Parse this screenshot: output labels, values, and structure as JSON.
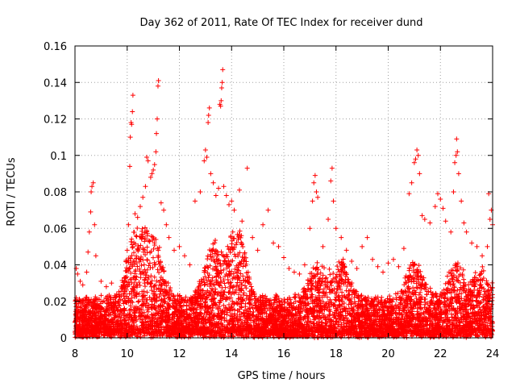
{
  "chart_data": {
    "type": "scatter",
    "title": "Day 362 of 2011, Rate Of TEC Index for receiver dund",
    "xlabel": "GPS time / hours",
    "ylabel": "ROTI / TECUs",
    "xlim": [
      8,
      24
    ],
    "ylim": [
      0,
      0.16
    ],
    "x_ticks": [
      8,
      10,
      12,
      14,
      16,
      18,
      20,
      22,
      24
    ],
    "x_tick_labels": [
      "8",
      "10",
      "12",
      "14",
      "16",
      "18",
      "20",
      "22",
      "24"
    ],
    "y_ticks": [
      0,
      0.02,
      0.04,
      0.06,
      0.08,
      0.1,
      0.12,
      0.14,
      0.16
    ],
    "y_tick_labels": [
      "0",
      "0.02",
      "0.04",
      "0.06",
      "0.08",
      "0.1",
      "0.12",
      "0.14",
      "0.16"
    ],
    "grid": true,
    "marker": "+",
    "series_color": "#ff0000",
    "series": [
      {
        "name": "ROTI",
        "points": [
          [
            8.05,
            0.038
          ],
          [
            8.1,
            0.035
          ],
          [
            8.2,
            0.031
          ],
          [
            8.3,
            0.029
          ],
          [
            8.45,
            0.036
          ],
          [
            8.5,
            0.047
          ],
          [
            8.55,
            0.058
          ],
          [
            8.6,
            0.069
          ],
          [
            8.62,
            0.08
          ],
          [
            8.65,
            0.083
          ],
          [
            8.7,
            0.085
          ],
          [
            8.75,
            0.062
          ],
          [
            8.8,
            0.045
          ],
          [
            9.0,
            0.031
          ],
          [
            9.2,
            0.028
          ],
          [
            9.4,
            0.03
          ],
          [
            9.6,
            0.024
          ],
          [
            9.8,
            0.027
          ],
          [
            10.0,
            0.048
          ],
          [
            10.05,
            0.062
          ],
          [
            10.1,
            0.094
          ],
          [
            10.12,
            0.11
          ],
          [
            10.15,
            0.118
          ],
          [
            10.17,
            0.117
          ],
          [
            10.2,
            0.124
          ],
          [
            10.22,
            0.133
          ],
          [
            10.3,
            0.068
          ],
          [
            10.4,
            0.066
          ],
          [
            10.5,
            0.072
          ],
          [
            10.6,
            0.077
          ],
          [
            10.7,
            0.083
          ],
          [
            10.75,
            0.099
          ],
          [
            10.8,
            0.097
          ],
          [
            10.9,
            0.088
          ],
          [
            10.95,
            0.09
          ],
          [
            11.0,
            0.092
          ],
          [
            11.05,
            0.095
          ],
          [
            11.1,
            0.102
          ],
          [
            11.12,
            0.112
          ],
          [
            11.15,
            0.12
          ],
          [
            11.18,
            0.138
          ],
          [
            11.2,
            0.141
          ],
          [
            11.3,
            0.074
          ],
          [
            11.4,
            0.07
          ],
          [
            11.5,
            0.062
          ],
          [
            11.6,
            0.055
          ],
          [
            11.8,
            0.048
          ],
          [
            12.0,
            0.05
          ],
          [
            12.2,
            0.045
          ],
          [
            12.4,
            0.04
          ],
          [
            12.6,
            0.075
          ],
          [
            12.8,
            0.08
          ],
          [
            12.95,
            0.097
          ],
          [
            13.0,
            0.103
          ],
          [
            13.05,
            0.099
          ],
          [
            13.1,
            0.118
          ],
          [
            13.12,
            0.122
          ],
          [
            13.15,
            0.126
          ],
          [
            13.2,
            0.09
          ],
          [
            13.3,
            0.085
          ],
          [
            13.4,
            0.078
          ],
          [
            13.5,
            0.082
          ],
          [
            13.55,
            0.128
          ],
          [
            13.58,
            0.127
          ],
          [
            13.6,
            0.13
          ],
          [
            13.62,
            0.137
          ],
          [
            13.64,
            0.14
          ],
          [
            13.66,
            0.147
          ],
          [
            13.7,
            0.083
          ],
          [
            13.8,
            0.078
          ],
          [
            13.9,
            0.073
          ],
          [
            14.0,
            0.075
          ],
          [
            14.1,
            0.07
          ],
          [
            14.3,
            0.081
          ],
          [
            14.4,
            0.064
          ],
          [
            14.6,
            0.093
          ],
          [
            14.8,
            0.055
          ],
          [
            15.0,
            0.048
          ],
          [
            15.2,
            0.062
          ],
          [
            15.4,
            0.07
          ],
          [
            15.6,
            0.052
          ],
          [
            15.8,
            0.05
          ],
          [
            16.0,
            0.044
          ],
          [
            16.2,
            0.038
          ],
          [
            16.4,
            0.036
          ],
          [
            16.6,
            0.035
          ],
          [
            16.8,
            0.04
          ],
          [
            17.0,
            0.06
          ],
          [
            17.1,
            0.075
          ],
          [
            17.15,
            0.085
          ],
          [
            17.2,
            0.089
          ],
          [
            17.25,
            0.08
          ],
          [
            17.3,
            0.077
          ],
          [
            17.5,
            0.05
          ],
          [
            17.7,
            0.065
          ],
          [
            17.8,
            0.086
          ],
          [
            17.85,
            0.093
          ],
          [
            17.9,
            0.075
          ],
          [
            18.0,
            0.06
          ],
          [
            18.2,
            0.055
          ],
          [
            18.4,
            0.048
          ],
          [
            18.6,
            0.042
          ],
          [
            18.8,
            0.038
          ],
          [
            19.0,
            0.05
          ],
          [
            19.2,
            0.055
          ],
          [
            19.4,
            0.043
          ],
          [
            19.6,
            0.039
          ],
          [
            19.8,
            0.036
          ],
          [
            20.0,
            0.041
          ],
          [
            20.2,
            0.043
          ],
          [
            20.4,
            0.039
          ],
          [
            20.6,
            0.049
          ],
          [
            20.8,
            0.079
          ],
          [
            20.9,
            0.085
          ],
          [
            21.0,
            0.096
          ],
          [
            21.05,
            0.098
          ],
          [
            21.1,
            0.103
          ],
          [
            21.15,
            0.1
          ],
          [
            21.2,
            0.09
          ],
          [
            21.3,
            0.067
          ],
          [
            21.4,
            0.065
          ],
          [
            21.6,
            0.063
          ],
          [
            21.8,
            0.072
          ],
          [
            21.9,
            0.079
          ],
          [
            22.0,
            0.076
          ],
          [
            22.1,
            0.071
          ],
          [
            22.2,
            0.064
          ],
          [
            22.4,
            0.058
          ],
          [
            22.5,
            0.08
          ],
          [
            22.55,
            0.096
          ],
          [
            22.6,
            0.1
          ],
          [
            22.62,
            0.109
          ],
          [
            22.65,
            0.102
          ],
          [
            22.7,
            0.09
          ],
          [
            22.8,
            0.075
          ],
          [
            22.9,
            0.063
          ],
          [
            23.0,
            0.058
          ],
          [
            23.2,
            0.052
          ],
          [
            23.4,
            0.05
          ],
          [
            23.6,
            0.045
          ],
          [
            23.8,
            0.05
          ],
          [
            23.85,
            0.079
          ],
          [
            23.9,
            0.065
          ],
          [
            23.95,
            0.07
          ],
          [
            24.0,
            0.062
          ]
        ],
        "dense_band": {
          "description": "thousands of points between 0.002 and 0.035 across the full time range",
          "y_min": 0.002,
          "y_typical_max": 0.035
        }
      }
    ]
  }
}
